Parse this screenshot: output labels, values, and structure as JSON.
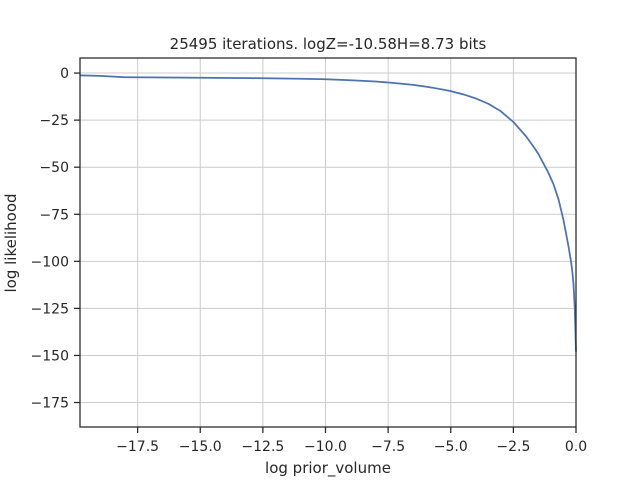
{
  "chart_data": {
    "type": "line",
    "title": "25495 iterations. logZ=-10.58H=8.73 bits",
    "xlabel": "log prior_volume",
    "ylabel": "log likelihood",
    "xlim": [
      -19.8,
      0.0
    ],
    "ylim": [
      -188,
      8
    ],
    "grid": true,
    "x_ticks": [
      -17.5,
      -15.0,
      -12.5,
      -10.0,
      -7.5,
      -5.0,
      -2.5,
      0.0
    ],
    "x_tick_labels": [
      "−17.5",
      "−15.0",
      "−12.5",
      "−10.0",
      "−7.5",
      "−5.0",
      "−2.5",
      "0.0"
    ],
    "y_ticks": [
      0,
      -25,
      -50,
      -75,
      -100,
      -125,
      -150,
      -175
    ],
    "y_tick_labels": [
      "0",
      "−25",
      "−50",
      "−75",
      "−100",
      "−125",
      "−150",
      "−175"
    ],
    "series": [
      {
        "color": "#4c72b0",
        "x": [
          -19.8,
          -19.0,
          -18.0,
          -17.0,
          -15.0,
          -13.0,
          -11.0,
          -10.0,
          -9.0,
          -8.0,
          -7.5,
          -7.0,
          -6.5,
          -6.0,
          -5.5,
          -5.0,
          -4.5,
          -4.0,
          -3.5,
          -3.0,
          -2.5,
          -2.0,
          -1.7,
          -1.5,
          -1.3,
          -1.1,
          -0.9,
          -0.7,
          -0.5,
          -0.4,
          -0.3,
          -0.2,
          -0.15,
          -0.1,
          -0.05,
          0.0
        ],
        "y": [
          -1.2,
          -1.5,
          -2.2,
          -2.3,
          -2.5,
          -2.7,
          -3.0,
          -3.3,
          -3.8,
          -4.5,
          -5.0,
          -5.6,
          -6.3,
          -7.2,
          -8.3,
          -9.6,
          -11.3,
          -13.5,
          -16.3,
          -20.3,
          -26.0,
          -33.5,
          -39.0,
          -43.0,
          -48.0,
          -53.0,
          -59.0,
          -67.0,
          -78.0,
          -85.0,
          -92.0,
          -100.0,
          -105.0,
          -112.0,
          -125.0,
          -148.0
        ]
      }
    ]
  }
}
